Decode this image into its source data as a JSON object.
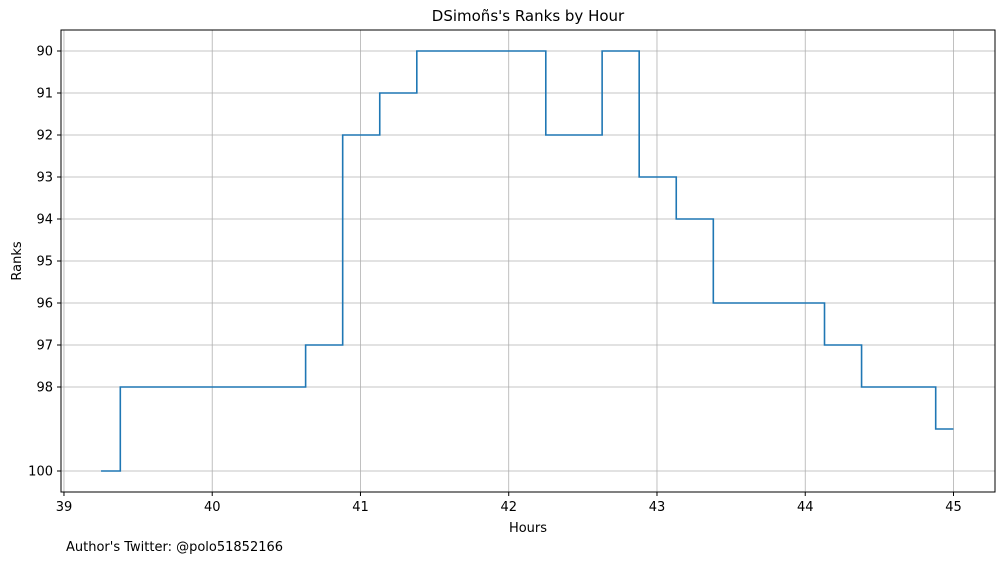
{
  "chart_data": {
    "type": "line",
    "drawstyle": "steps-post",
    "title": "DSimoñs's Ranks by Hour",
    "xlabel": "Hours",
    "ylabel": "Ranks",
    "xlim": [
      38.98,
      45.28
    ],
    "ylim": [
      100.5,
      89.5
    ],
    "y_inverted": true,
    "grid": true,
    "xticks": [
      39,
      40,
      41,
      42,
      43,
      44,
      45
    ],
    "yticks": [
      90,
      91,
      92,
      93,
      94,
      95,
      96,
      97,
      98,
      100
    ],
    "color": "#1f77b4",
    "series": [
      {
        "x": [
          39.25,
          39.38,
          40.63,
          40.88,
          41.13,
          41.38,
          42.25,
          42.63,
          42.88,
          43.13,
          43.38,
          44.13,
          44.38,
          44.88,
          45.0
        ],
        "y": [
          100,
          98,
          97,
          92,
          91,
          90,
          92,
          90,
          93,
          94,
          96,
          97,
          98,
          99,
          99
        ]
      }
    ]
  },
  "footer": "Author's Twitter: @polo51852166"
}
